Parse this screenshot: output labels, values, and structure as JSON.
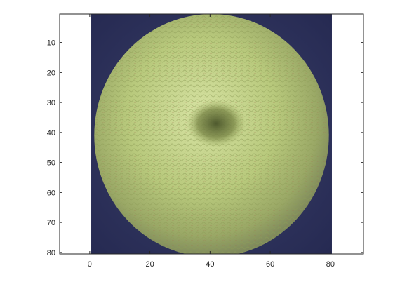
{
  "chart_data": {
    "type": "image",
    "title": "",
    "xlabel": "",
    "ylabel": "",
    "xlim": [
      -10,
      91
    ],
    "ylim": [
      80.5,
      0.5
    ],
    "y_direction": "reversed",
    "image_extent": {
      "x": [
        0.5,
        80.5
      ],
      "y": [
        0.5,
        80.5
      ]
    },
    "x_ticks": [
      0,
      20,
      40,
      60,
      80
    ],
    "y_ticks": [
      10,
      20,
      30,
      40,
      50,
      60,
      70,
      80
    ],
    "x_tick_labels": [
      "0",
      "20",
      "40",
      "60",
      "80"
    ],
    "y_tick_labels": [
      "10",
      "20",
      "30",
      "40",
      "50",
      "60",
      "70",
      "80"
    ],
    "grid": false,
    "box": true,
    "image_description_colors": {
      "background": "#2f3560",
      "fruit_light": "#cfdc9a",
      "fruit_mid": "#a9bd6c",
      "fruit_dark": "#7d8a4a",
      "stem_spot": "#5f6a3a",
      "axis": "#262626"
    }
  }
}
